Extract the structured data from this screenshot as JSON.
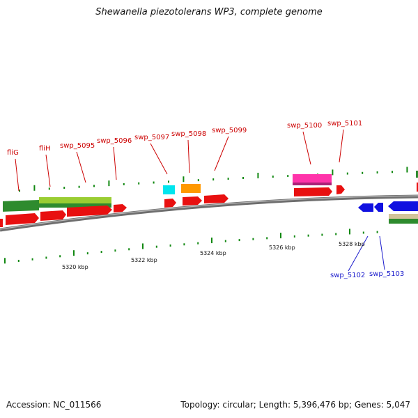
{
  "title": "Shewanella piezotolerans WP3, complete genome",
  "accession": "Accession: NC_011566",
  "summary": "Topology: circular; Length: 5,396,476 bp; Genes: 5,047",
  "colors": {
    "cds": "#e81010",
    "reverse_cds": "#1010e0",
    "backbone": "#808080",
    "tick_fwd": "#118811",
    "tick_rev": "#118811",
    "label_fwd": "#cc0000",
    "label_rev": "#1a1acc"
  },
  "scale_labels": [
    "5320 kbp",
    "5322 kbp",
    "5324 kbp",
    "5326 kbp",
    "5328 kbp"
  ],
  "forward_labels": [
    "fliG",
    "fliH",
    "swp_5095",
    "swp_5096",
    "swp_5097",
    "swp_5098",
    "swp_5099",
    "swp_5100",
    "swp_5101"
  ],
  "reverse_labels": [
    "swp_5102",
    "swp_5103"
  ]
}
